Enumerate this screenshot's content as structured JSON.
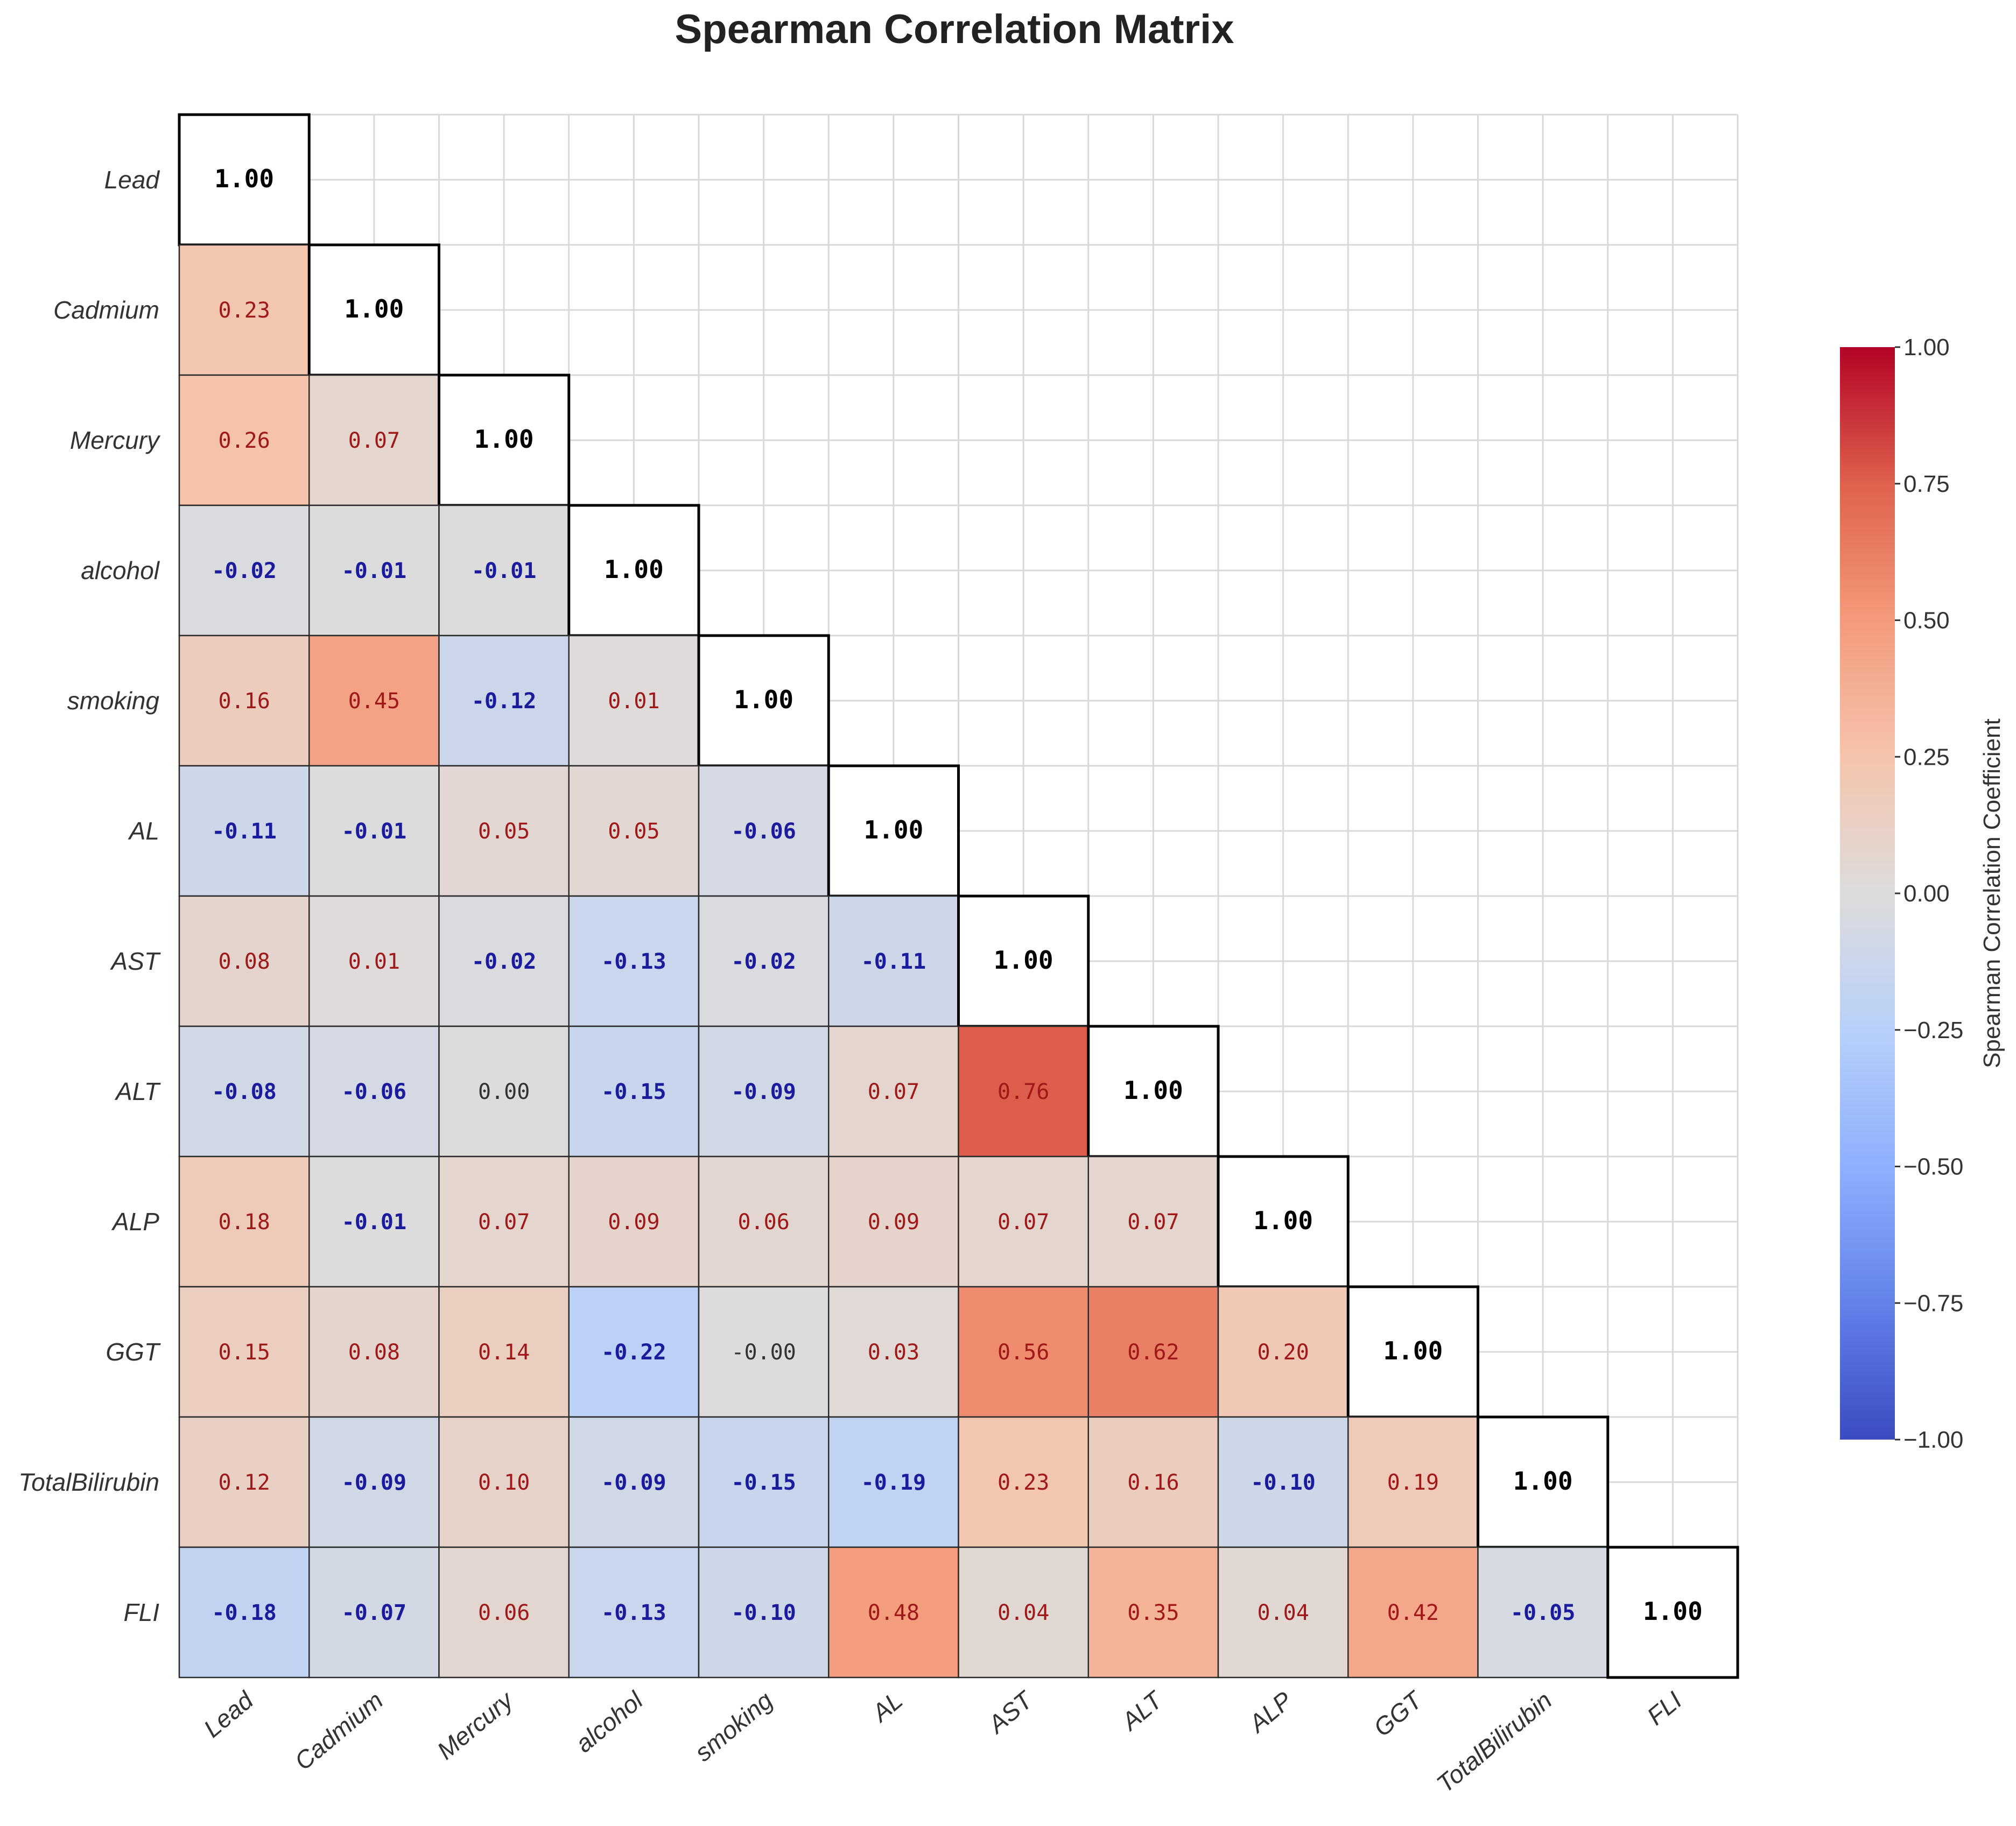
{
  "chart_data": {
    "type": "heatmap",
    "title": "Spearman Correlation Matrix",
    "variables": [
      "Lead",
      "Cadmium",
      "Mercury",
      "alcohol",
      "smoking",
      "AL",
      "AST",
      "ALT",
      "ALP",
      "GGT",
      "TotalBilirubin",
      "FLI"
    ],
    "matrix": [
      [
        "1.00"
      ],
      [
        "0.23",
        "1.00"
      ],
      [
        "0.26",
        "0.07",
        "1.00"
      ],
      [
        "-0.02",
        "-0.01",
        "-0.01",
        "1.00"
      ],
      [
        "0.16",
        "0.45",
        "-0.12",
        "0.01",
        "1.00"
      ],
      [
        "-0.11",
        "-0.01",
        "0.05",
        "0.05",
        "-0.06",
        "1.00"
      ],
      [
        "0.08",
        "0.01",
        "-0.02",
        "-0.13",
        "-0.02",
        "-0.11",
        "1.00"
      ],
      [
        "-0.08",
        "-0.06",
        "0.00",
        "-0.15",
        "-0.09",
        "0.07",
        "0.76",
        "1.00"
      ],
      [
        "0.18",
        "-0.01",
        "0.07",
        "0.09",
        "0.06",
        "0.09",
        "0.07",
        "0.07",
        "1.00"
      ],
      [
        "0.15",
        "0.08",
        "0.14",
        "-0.22",
        "-0.00",
        "0.03",
        "0.56",
        "0.62",
        "0.20",
        "1.00"
      ],
      [
        "0.12",
        "-0.09",
        "0.10",
        "-0.09",
        "-0.15",
        "-0.19",
        "0.23",
        "0.16",
        "-0.10",
        "0.19",
        "1.00"
      ],
      [
        "-0.18",
        "-0.07",
        "0.06",
        "-0.13",
        "-0.10",
        "0.48",
        "0.04",
        "0.35",
        "0.04",
        "0.42",
        "-0.05",
        "1.00"
      ]
    ],
    "colorbar": {
      "label": "Spearman Correlation Coefficient",
      "range": [
        -1.0,
        1.0
      ],
      "ticks": [
        "1.00",
        "0.75",
        "0.50",
        "0.25",
        "0.00",
        "−0.25",
        "−0.50",
        "−0.75",
        "−1.00"
      ],
      "tick_values": [
        1.0,
        0.75,
        0.5,
        0.25,
        0.0,
        -0.25,
        -0.5,
        -0.75,
        -1.0
      ],
      "colormap": "coolwarm"
    },
    "grid": true,
    "mask": "upper triangle"
  }
}
